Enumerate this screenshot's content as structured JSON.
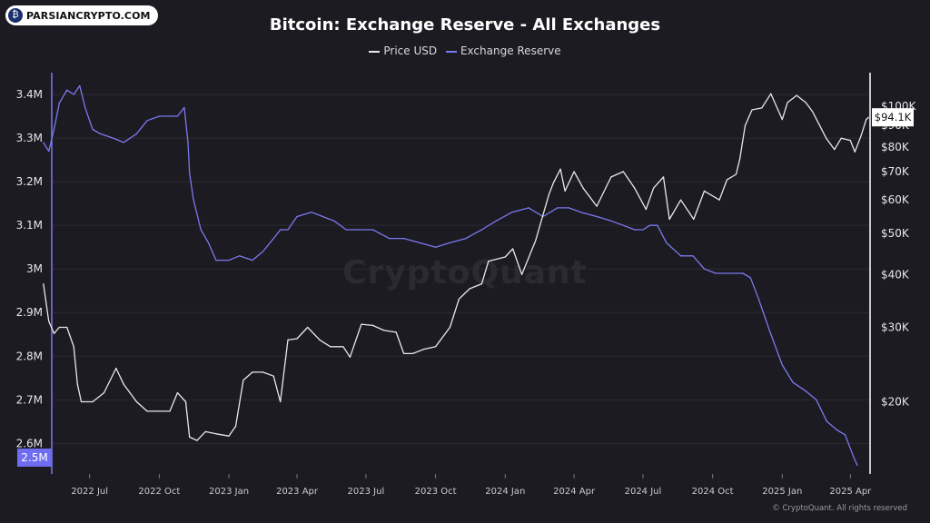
{
  "brand": {
    "name": "PARSIANCRYPTO.COM",
    "icon": "coin-icon"
  },
  "chart_data": {
    "type": "line",
    "title": "Bitcoin: Exchange Reserve - All Exchanges",
    "legend": [
      {
        "name": "Price USD",
        "color": "#e8e8ec"
      },
      {
        "name": "Exchange Reserve",
        "color": "#7b79f0"
      }
    ],
    "legend_position": "top-center",
    "grid": true,
    "x_ticks": [
      "2022 Jul",
      "2022 Oct",
      "2023 Jan",
      "2023 Apr",
      "2023 Jul",
      "2023 Oct",
      "2024 Jan",
      "2024 Apr",
      "2024 Jul",
      "2024 Oct",
      "2025 Jan",
      "2025 Apr"
    ],
    "y_left": {
      "ticks": [
        "3.4M",
        "3.3M",
        "3.2M",
        "3.1M",
        "3M",
        "2.9M",
        "2.8M",
        "2.7M",
        "2.6M"
      ],
      "tick_values": [
        3.4,
        3.3,
        3.2,
        3.1,
        3.0,
        2.9,
        2.8,
        2.7,
        2.6
      ],
      "range": [
        2.53,
        3.45
      ],
      "unit": "M BTC",
      "highlight_label": "2.5M"
    },
    "y_right": {
      "scale": "log",
      "ticks": [
        "$100K",
        "$90K",
        "$80K",
        "$70K",
        "$60K",
        "$50K",
        "$40K",
        "$30K",
        "$20K"
      ],
      "tick_values": [
        100,
        90,
        80,
        70,
        60,
        50,
        40,
        30,
        20
      ],
      "range": [
        13.5,
        120
      ],
      "unit": "K USD",
      "current_value_label": "$94.1K"
    },
    "series": [
      {
        "name": "Exchange Reserve",
        "axis": "left",
        "x": [
          "2022-05-01",
          "2022-05-08",
          "2022-05-15",
          "2022-05-22",
          "2022-06-01",
          "2022-06-10",
          "2022-06-18",
          "2022-06-25",
          "2022-07-05",
          "2022-07-15",
          "2022-08-01",
          "2022-08-15",
          "2022-09-01",
          "2022-09-15",
          "2022-10-01",
          "2022-10-15",
          "2022-10-25",
          "2022-11-03",
          "2022-11-08",
          "2022-11-10",
          "2022-11-15",
          "2022-11-25",
          "2022-12-05",
          "2022-12-15",
          "2023-01-01",
          "2023-01-15",
          "2023-02-01",
          "2023-02-15",
          "2023-03-01",
          "2023-03-10",
          "2023-03-20",
          "2023-04-01",
          "2023-04-20",
          "2023-05-05",
          "2023-05-20",
          "2023-06-05",
          "2023-06-20",
          "2023-07-10",
          "2023-08-01",
          "2023-08-20",
          "2023-09-10",
          "2023-10-01",
          "2023-10-20",
          "2023-11-10",
          "2023-12-01",
          "2023-12-20",
          "2024-01-10",
          "2024-02-01",
          "2024-02-20",
          "2024-03-10",
          "2024-03-25",
          "2024-04-10",
          "2024-05-01",
          "2024-05-20",
          "2024-06-05",
          "2024-06-20",
          "2024-07-01",
          "2024-07-10",
          "2024-07-20",
          "2024-08-01",
          "2024-08-20",
          "2024-09-05",
          "2024-09-20",
          "2024-10-05",
          "2024-10-20",
          "2024-11-01",
          "2024-11-10",
          "2024-11-20",
          "2024-12-01",
          "2024-12-15",
          "2025-01-01",
          "2025-01-15",
          "2025-02-01",
          "2025-02-15",
          "2025-03-01",
          "2025-03-15",
          "2025-03-25",
          "2025-04-05",
          "2025-04-10"
        ],
        "values": [
          3.29,
          3.27,
          3.32,
          3.38,
          3.41,
          3.4,
          3.42,
          3.37,
          3.32,
          3.31,
          3.3,
          3.29,
          3.31,
          3.34,
          3.35,
          3.35,
          3.35,
          3.37,
          3.29,
          3.22,
          3.16,
          3.09,
          3.06,
          3.02,
          3.02,
          3.03,
          3.02,
          3.04,
          3.07,
          3.09,
          3.09,
          3.12,
          3.13,
          3.12,
          3.11,
          3.09,
          3.09,
          3.09,
          3.07,
          3.07,
          3.06,
          3.05,
          3.06,
          3.07,
          3.09,
          3.11,
          3.13,
          3.14,
          3.12,
          3.14,
          3.14,
          3.13,
          3.12,
          3.11,
          3.1,
          3.09,
          3.09,
          3.1,
          3.1,
          3.06,
          3.03,
          3.03,
          3.0,
          2.99,
          2.99,
          2.99,
          2.99,
          2.98,
          2.93,
          2.86,
          2.78,
          2.74,
          2.72,
          2.7,
          2.65,
          2.63,
          2.62,
          2.57,
          2.55
        ]
      },
      {
        "name": "Price USD",
        "axis": "right",
        "x": [
          "2022-05-01",
          "2022-05-08",
          "2022-05-15",
          "2022-05-22",
          "2022-06-01",
          "2022-06-10",
          "2022-06-15",
          "2022-06-20",
          "2022-07-05",
          "2022-07-20",
          "2022-08-05",
          "2022-08-15",
          "2022-09-01",
          "2022-09-15",
          "2022-10-01",
          "2022-10-15",
          "2022-10-25",
          "2022-11-05",
          "2022-11-10",
          "2022-11-20",
          "2022-12-01",
          "2022-12-15",
          "2023-01-01",
          "2023-01-10",
          "2023-01-20",
          "2023-02-01",
          "2023-02-15",
          "2023-03-01",
          "2023-03-10",
          "2023-03-20",
          "2023-04-01",
          "2023-04-15",
          "2023-05-01",
          "2023-05-15",
          "2023-06-01",
          "2023-06-10",
          "2023-06-25",
          "2023-07-10",
          "2023-07-25",
          "2023-08-10",
          "2023-08-20",
          "2023-09-01",
          "2023-09-15",
          "2023-10-01",
          "2023-10-20",
          "2023-11-01",
          "2023-11-15",
          "2023-12-01",
          "2023-12-10",
          "2024-01-01",
          "2024-01-11",
          "2024-01-23",
          "2024-02-10",
          "2024-02-28",
          "2024-03-05",
          "2024-03-14",
          "2024-03-20",
          "2024-04-01",
          "2024-04-13",
          "2024-05-01",
          "2024-05-20",
          "2024-06-05",
          "2024-06-20",
          "2024-07-05",
          "2024-07-15",
          "2024-07-28",
          "2024-08-05",
          "2024-08-20",
          "2024-09-06",
          "2024-09-20",
          "2024-10-10",
          "2024-10-20",
          "2024-11-01",
          "2024-11-06",
          "2024-11-13",
          "2024-11-22",
          "2024-12-05",
          "2024-12-17",
          "2025-01-01",
          "2025-01-08",
          "2025-01-20",
          "2025-02-01",
          "2025-02-10",
          "2025-02-28",
          "2025-03-11",
          "2025-03-20",
          "2025-04-01",
          "2025-04-07",
          "2025-04-15",
          "2025-04-22",
          "2025-04-25"
        ],
        "values": [
          38,
          31,
          29,
          30,
          30,
          27,
          22,
          20,
          20,
          21,
          24,
          22,
          20,
          19,
          19,
          19,
          21,
          20,
          16.5,
          16.2,
          17.0,
          16.8,
          16.6,
          17.5,
          22.5,
          23.5,
          23.5,
          23.0,
          20.0,
          28.0,
          28.2,
          30.0,
          28.0,
          27.0,
          27.0,
          25.5,
          30.5,
          30.3,
          29.5,
          29.2,
          26.0,
          26.0,
          26.6,
          27.0,
          30.0,
          35.0,
          37.0,
          38.0,
          43.0,
          44.0,
          46.0,
          40.0,
          48.0,
          62.0,
          66.0,
          71.0,
          63.0,
          70.0,
          64.0,
          58.0,
          68.0,
          70.0,
          64.0,
          57.0,
          64.0,
          68.0,
          54.0,
          60.0,
          54.0,
          63.0,
          60.0,
          67.0,
          69.0,
          75.0,
          90.0,
          98.0,
          99.0,
          107.0,
          93.0,
          102.0,
          106.0,
          102.0,
          97.0,
          84.0,
          79.0,
          84.0,
          83.0,
          78.0,
          85.0,
          93.0,
          94.1
        ]
      }
    ],
    "footer": "© CryptoQuant. All rights reserved",
    "watermark": "CryptoQuant"
  }
}
